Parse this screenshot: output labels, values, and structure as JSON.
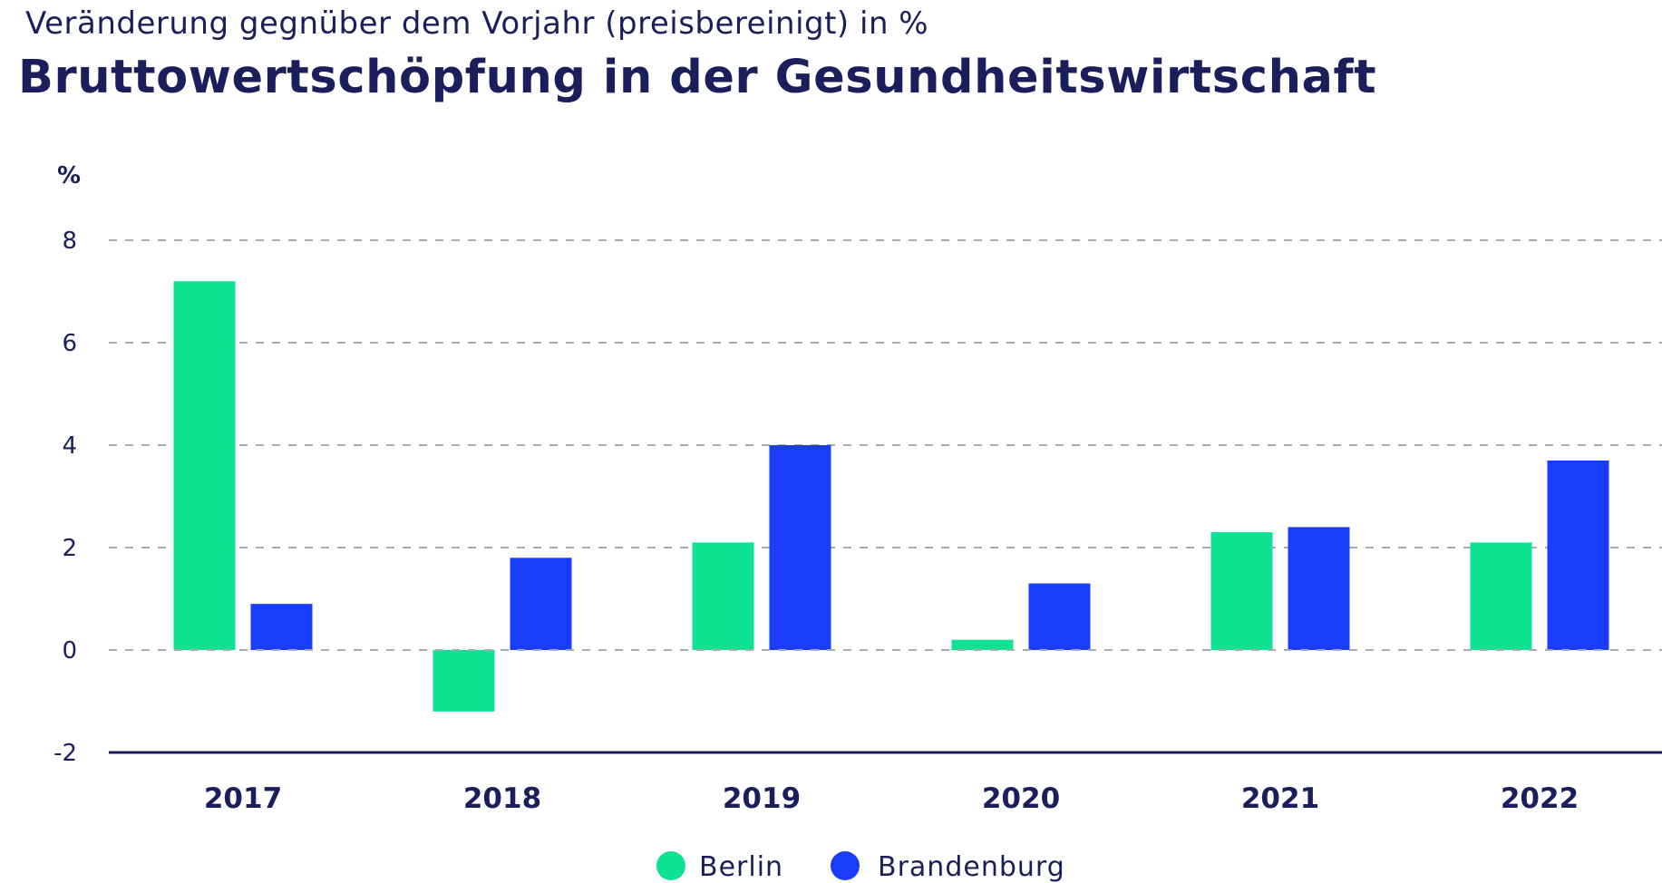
{
  "subtitle": "Veränderung gegnüber dem Vorjahr (preisbereinigt) in %",
  "title": "Bruttowertschöpfung in der Gesundheitswirtschaft",
  "chart_data": {
    "type": "bar",
    "title": "Bruttowertschöpfung in der Gesundheitswirtschaft",
    "subtitle": "Veränderung gegnüber dem Vorjahr (preisbereinigt) in %",
    "ylabel": "%",
    "xlabel": "",
    "ylim": [
      -2,
      8
    ],
    "yticks": [
      -2,
      0,
      2,
      4,
      6,
      8
    ],
    "grid": true,
    "legend_position": "bottom-center",
    "categories": [
      "2017",
      "2018",
      "2019",
      "2020",
      "2021",
      "2022"
    ],
    "series": [
      {
        "name": "Berlin",
        "color": "#0ee394",
        "values": [
          7.2,
          -1.2,
          2.1,
          0.2,
          2.3,
          2.1
        ]
      },
      {
        "name": "Brandenburg",
        "color": "#1a3dfc",
        "values": [
          0.9,
          1.8,
          4.0,
          1.3,
          2.4,
          3.7
        ]
      }
    ]
  }
}
